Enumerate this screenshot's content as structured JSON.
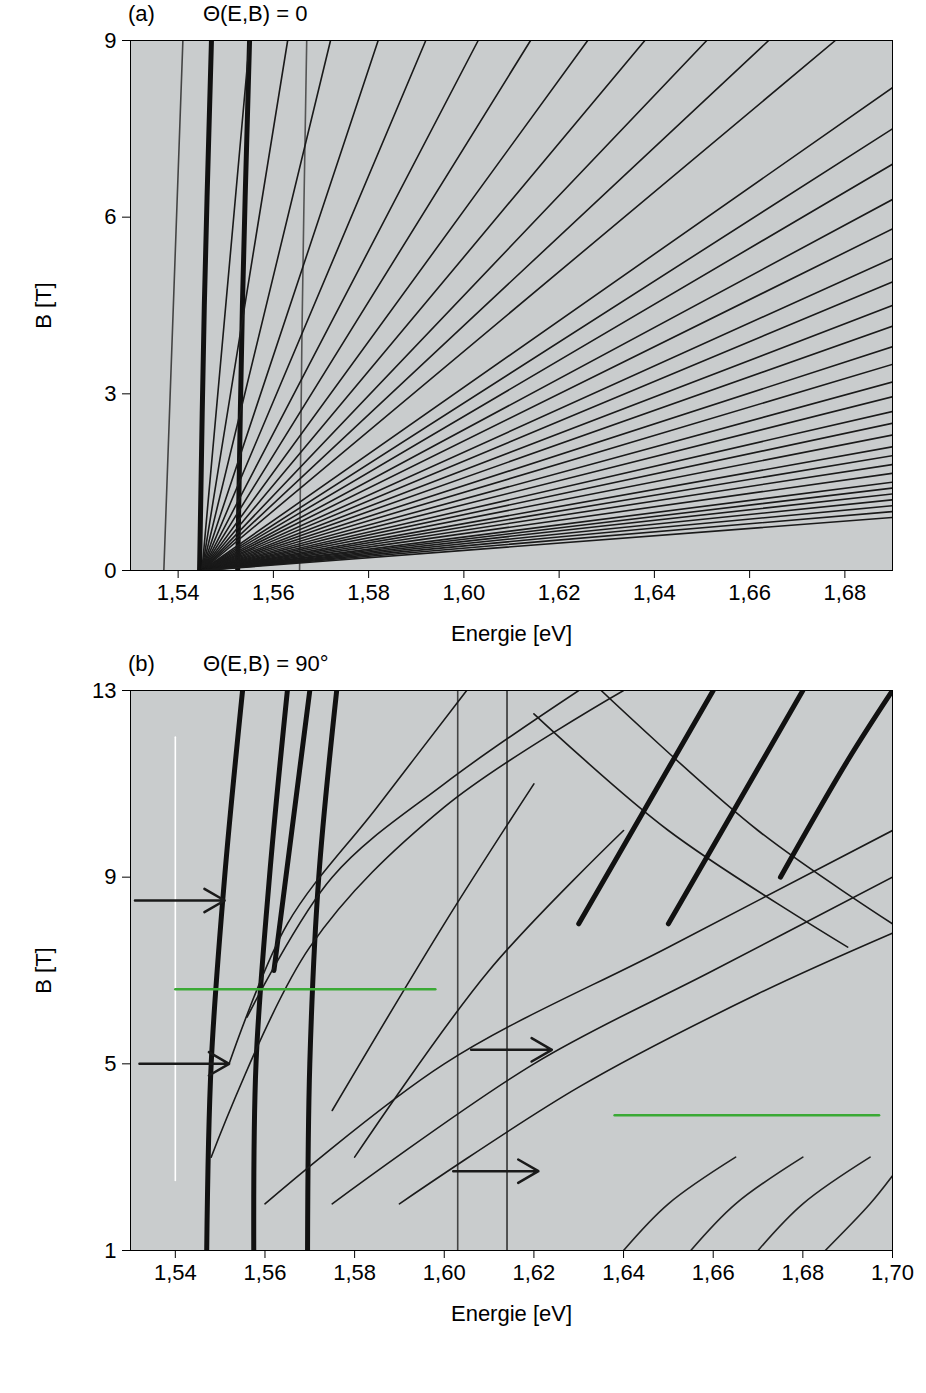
{
  "chart_data": [
    {
      "type": "line",
      "panel": "(a)",
      "title": "Θ(E,B) = 0",
      "xlabel": "Energie [eV]",
      "ylabel": "B [T]",
      "xlim": [
        1.53,
        1.69
      ],
      "ylim": [
        0,
        9
      ],
      "xticks": [
        {
          "value": 1.54,
          "label": "1,54"
        },
        {
          "value": 1.56,
          "label": "1,56"
        },
        {
          "value": 1.58,
          "label": "1,58"
        },
        {
          "value": 1.6,
          "label": "1,60"
        },
        {
          "value": 1.62,
          "label": "1,62"
        },
        {
          "value": 1.64,
          "label": "1,64"
        },
        {
          "value": 1.66,
          "label": "1,66"
        },
        {
          "value": 1.68,
          "label": "1,68"
        }
      ],
      "yticks": [
        0,
        3,
        6,
        9
      ],
      "grid": false,
      "series": [
        {
          "color": "#111111",
          "line_style": "bold",
          "x": [
            1.5445,
            1.5455,
            1.547
          ],
          "values": [
            0,
            4.5,
            9
          ]
        },
        {
          "color": "#111111",
          "line_style": "bold",
          "x": [
            1.5525,
            1.5535,
            1.555
          ],
          "values": [
            0,
            4.5,
            9
          ]
        },
        {
          "color": "#555555",
          "line_style": "solid",
          "x": [
            1.5655,
            1.566,
            1.567
          ],
          "values": [
            0,
            4,
            9
          ]
        },
        {
          "color": "#444444",
          "line_style": "solid",
          "x": [
            1.537,
            1.541
          ],
          "values": [
            0,
            9
          ]
        },
        {
          "color": "#1a1a1a",
          "line_style": "solid",
          "x": [
            1.545,
            1.555
          ],
          "values": [
            0,
            9
          ]
        },
        {
          "color": "#1a1a1a",
          "line_style": "solid",
          "x": [
            1.545,
            1.563
          ],
          "values": [
            0,
            9
          ]
        },
        {
          "color": "#1a1a1a",
          "line_style": "solid",
          "x": [
            1.545,
            1.572
          ],
          "values": [
            0,
            9
          ]
        },
        {
          "color": "#1a1a1a",
          "line_style": "solid",
          "x": [
            1.545,
            1.582
          ],
          "values": [
            0,
            9
          ]
        },
        {
          "color": "#1a1a1a",
          "line_style": "solid",
          "x": [
            1.545,
            1.592
          ],
          "values": [
            0,
            9
          ]
        },
        {
          "color": "#1a1a1a",
          "line_style": "solid",
          "x": [
            1.545,
            1.603
          ],
          "values": [
            0,
            9
          ]
        },
        {
          "color": "#1a1a1a",
          "line_style": "solid",
          "x": [
            1.545,
            1.614
          ],
          "values": [
            0,
            9
          ]
        },
        {
          "color": "#1a1a1a",
          "line_style": "solid",
          "x": [
            1.545,
            1.626
          ],
          "values": [
            0,
            9
          ]
        },
        {
          "color": "#1a1a1a",
          "line_style": "solid",
          "x": [
            1.545,
            1.638
          ],
          "values": [
            0,
            9
          ]
        },
        {
          "color": "#1a1a1a",
          "line_style": "solid",
          "x": [
            1.545,
            1.651
          ],
          "values": [
            0,
            9
          ]
        },
        {
          "color": "#1a1a1a",
          "line_style": "solid",
          "x": [
            1.545,
            1.664
          ],
          "values": [
            0,
            9
          ]
        },
        {
          "color": "#1a1a1a",
          "line_style": "solid",
          "x": [
            1.545,
            1.678
          ],
          "values": [
            0,
            9
          ]
        },
        {
          "color": "#1a1a1a",
          "line_style": "solid",
          "x": [
            1.545,
            1.69
          ],
          "values": [
            0,
            8.2
          ]
        },
        {
          "color": "#1a1a1a",
          "line_style": "solid",
          "x": [
            1.545,
            1.69
          ],
          "values": [
            0,
            7.5
          ]
        },
        {
          "color": "#1a1a1a",
          "line_style": "solid",
          "x": [
            1.545,
            1.69
          ],
          "values": [
            0,
            6.9
          ]
        },
        {
          "color": "#1a1a1a",
          "line_style": "solid",
          "x": [
            1.545,
            1.69
          ],
          "values": [
            0,
            6.3
          ]
        },
        {
          "color": "#1a1a1a",
          "line_style": "solid",
          "x": [
            1.545,
            1.69
          ],
          "values": [
            0,
            5.8
          ]
        },
        {
          "color": "#1a1a1a",
          "line_style": "solid",
          "x": [
            1.545,
            1.69
          ],
          "values": [
            0,
            5.3
          ]
        },
        {
          "color": "#1a1a1a",
          "line_style": "solid",
          "x": [
            1.545,
            1.69
          ],
          "values": [
            0,
            4.9
          ]
        },
        {
          "color": "#1a1a1a",
          "line_style": "solid",
          "x": [
            1.545,
            1.69
          ],
          "values": [
            0,
            4.5
          ]
        },
        {
          "color": "#1a1a1a",
          "line_style": "solid",
          "x": [
            1.545,
            1.69
          ],
          "values": [
            0,
            4.15
          ]
        },
        {
          "color": "#1a1a1a",
          "line_style": "solid",
          "x": [
            1.545,
            1.69
          ],
          "values": [
            0,
            3.8
          ]
        },
        {
          "color": "#1a1a1a",
          "line_style": "solid",
          "x": [
            1.545,
            1.69
          ],
          "values": [
            0,
            3.5
          ]
        },
        {
          "color": "#1a1a1a",
          "line_style": "solid",
          "x": [
            1.545,
            1.69
          ],
          "values": [
            0,
            3.2
          ]
        },
        {
          "color": "#1a1a1a",
          "line_style": "solid",
          "x": [
            1.545,
            1.69
          ],
          "values": [
            0,
            2.95
          ]
        },
        {
          "color": "#1a1a1a",
          "line_style": "solid",
          "x": [
            1.545,
            1.69
          ],
          "values": [
            0,
            2.7
          ]
        },
        {
          "color": "#1a1a1a",
          "line_style": "solid",
          "x": [
            1.545,
            1.69
          ],
          "values": [
            0,
            2.5
          ]
        },
        {
          "color": "#1a1a1a",
          "line_style": "solid",
          "x": [
            1.545,
            1.69
          ],
          "values": [
            0,
            2.3
          ]
        },
        {
          "color": "#1a1a1a",
          "line_style": "solid",
          "x": [
            1.545,
            1.69
          ],
          "values": [
            0,
            2.1
          ]
        },
        {
          "color": "#1a1a1a",
          "line_style": "solid",
          "x": [
            1.545,
            1.69
          ],
          "values": [
            0,
            1.95
          ]
        },
        {
          "color": "#1a1a1a",
          "line_style": "solid",
          "x": [
            1.545,
            1.69
          ],
          "values": [
            0,
            1.8
          ]
        },
        {
          "color": "#1a1a1a",
          "line_style": "solid",
          "x": [
            1.545,
            1.69
          ],
          "values": [
            0,
            1.65
          ]
        },
        {
          "color": "#1a1a1a",
          "line_style": "solid",
          "x": [
            1.545,
            1.69
          ],
          "values": [
            0,
            1.5
          ]
        },
        {
          "color": "#1a1a1a",
          "line_style": "solid",
          "x": [
            1.545,
            1.69
          ],
          "values": [
            0,
            1.4
          ]
        },
        {
          "color": "#1a1a1a",
          "line_style": "solid",
          "x": [
            1.545,
            1.69
          ],
          "values": [
            0,
            1.3
          ]
        },
        {
          "color": "#1a1a1a",
          "line_style": "solid",
          "x": [
            1.545,
            1.69
          ],
          "values": [
            0,
            1.2
          ]
        },
        {
          "color": "#1a1a1a",
          "line_style": "solid",
          "x": [
            1.545,
            1.69
          ],
          "values": [
            0,
            1.1
          ]
        },
        {
          "color": "#1a1a1a",
          "line_style": "solid",
          "x": [
            1.545,
            1.69
          ],
          "values": [
            0,
            1.0
          ]
        },
        {
          "color": "#1a1a1a",
          "line_style": "solid",
          "x": [
            1.545,
            1.69
          ],
          "values": [
            0,
            0.9
          ]
        }
      ]
    },
    {
      "type": "line",
      "panel": "(b)",
      "title": "Θ(E,B) = 90°",
      "xlabel": "Energie [eV]",
      "ylabel": "B [T]",
      "xlim": [
        1.53,
        1.7
      ],
      "ylim": [
        1,
        13
      ],
      "xticks": [
        {
          "value": 1.54,
          "label": "1,54"
        },
        {
          "value": 1.56,
          "label": "1,56"
        },
        {
          "value": 1.58,
          "label": "1,58"
        },
        {
          "value": 1.6,
          "label": "1,60"
        },
        {
          "value": 1.62,
          "label": "1,62"
        },
        {
          "value": 1.64,
          "label": "1,64"
        },
        {
          "value": 1.66,
          "label": "1,66"
        },
        {
          "value": 1.68,
          "label": "1,68"
        },
        {
          "value": 1.7,
          "label": "1,70"
        }
      ],
      "yticks": [
        1,
        5,
        9,
        13
      ],
      "grid": false,
      "series": [
        {
          "color": "#ffffff",
          "line_style": "solid",
          "x": [
            1.54,
            1.54
          ],
          "values": [
            2.5,
            12
          ]
        },
        {
          "color": "#444444",
          "line_style": "solid",
          "x": [
            1.603,
            1.603
          ],
          "values": [
            1,
            13
          ]
        },
        {
          "color": "#333333",
          "line_style": "solid",
          "x": [
            1.614,
            1.614
          ],
          "values": [
            1,
            13
          ]
        },
        {
          "color": "#111111",
          "line_style": "bold",
          "x": [
            1.547,
            1.548,
            1.551,
            1.555
          ],
          "values": [
            1,
            5,
            9,
            13
          ]
        },
        {
          "color": "#111111",
          "line_style": "bold",
          "x": [
            1.5575,
            1.558,
            1.561,
            1.565
          ],
          "values": [
            1,
            5,
            9,
            13
          ]
        },
        {
          "color": "#111111",
          "line_style": "bold",
          "x": [
            1.5695,
            1.57,
            1.572,
            1.576
          ],
          "values": [
            1,
            5,
            9,
            13
          ]
        },
        {
          "color": "#111111",
          "line_style": "bold",
          "x": [
            1.562,
            1.566,
            1.57
          ],
          "values": [
            7,
            10,
            13
          ]
        },
        {
          "color": "#1a1a1a",
          "line_style": "solid",
          "x": [
            1.552,
            1.565,
            1.585,
            1.605
          ],
          "values": [
            5,
            8,
            10.5,
            13
          ]
        },
        {
          "color": "#1a1a1a",
          "line_style": "solid",
          "x": [
            1.556,
            1.575,
            1.6,
            1.63
          ],
          "values": [
            6,
            9,
            11,
            13
          ]
        },
        {
          "color": "#1a1a1a",
          "line_style": "solid",
          "x": [
            1.548,
            1.57,
            1.6,
            1.64
          ],
          "values": [
            3,
            7.5,
            10.5,
            13
          ]
        },
        {
          "color": "#1a1a1a",
          "line_style": "solid",
          "x": [
            1.56,
            1.6,
            1.65,
            1.7
          ],
          "values": [
            2,
            5,
            7.5,
            10
          ]
        },
        {
          "color": "#1a1a1a",
          "line_style": "solid",
          "x": [
            1.575,
            1.62,
            1.66,
            1.7
          ],
          "values": [
            2,
            5,
            7,
            9
          ]
        },
        {
          "color": "#1a1a1a",
          "line_style": "solid",
          "x": [
            1.59,
            1.63,
            1.67,
            1.7
          ],
          "values": [
            2,
            4.5,
            6.5,
            7.8
          ]
        },
        {
          "color": "#1a1a1a",
          "line_style": "solid",
          "x": [
            1.575,
            1.6,
            1.62
          ],
          "values": [
            4,
            8,
            11
          ]
        },
        {
          "color": "#1a1a1a",
          "line_style": "solid",
          "x": [
            1.58,
            1.61,
            1.64
          ],
          "values": [
            3,
            7,
            10
          ]
        },
        {
          "color": "#1a1a1a",
          "line_style": "solid",
          "x": [
            1.62,
            1.65,
            1.69
          ],
          "values": [
            12.5,
            10,
            7.5
          ]
        },
        {
          "color": "#1a1a1a",
          "line_style": "solid",
          "x": [
            1.635,
            1.67,
            1.7
          ],
          "values": [
            13,
            10,
            8
          ]
        },
        {
          "color": "#111111",
          "line_style": "bold",
          "x": [
            1.63,
            1.645,
            1.66
          ],
          "values": [
            8,
            10.5,
            13
          ]
        },
        {
          "color": "#111111",
          "line_style": "bold",
          "x": [
            1.65,
            1.665,
            1.68
          ],
          "values": [
            8,
            10.5,
            13
          ]
        },
        {
          "color": "#111111",
          "line_style": "bold",
          "x": [
            1.675,
            1.69,
            1.7
          ],
          "values": [
            9,
            11.5,
            13
          ]
        },
        {
          "color": "#222222",
          "line_style": "solid",
          "x": [
            1.64,
            1.65,
            1.665
          ],
          "values": [
            1,
            2,
            3
          ]
        },
        {
          "color": "#222222",
          "line_style": "solid",
          "x": [
            1.655,
            1.665,
            1.68
          ],
          "values": [
            1,
            2,
            3
          ]
        },
        {
          "color": "#222222",
          "line_style": "solid",
          "x": [
            1.67,
            1.68,
            1.695
          ],
          "values": [
            1,
            2,
            3
          ]
        },
        {
          "color": "#222222",
          "line_style": "solid",
          "x": [
            1.685,
            1.695,
            1.7
          ],
          "values": [
            1,
            2,
            2.6
          ]
        },
        {
          "color": "#3aa935",
          "line_style": "solid",
          "x": [
            1.54,
            1.598
          ],
          "values": [
            6.6,
            6.6
          ]
        },
        {
          "color": "#3aa935",
          "line_style": "solid",
          "x": [
            1.638,
            1.697
          ],
          "values": [
            3.9,
            3.9
          ]
        },
        {
          "type": "arrow",
          "color": "#1a1a1a",
          "x": [
            1.531,
            1.551
          ],
          "values": [
            8.5,
            8.5
          ]
        },
        {
          "type": "arrow",
          "color": "#1a1a1a",
          "x": [
            1.532,
            1.552
          ],
          "values": [
            5,
            5
          ]
        },
        {
          "type": "arrow",
          "color": "#1a1a1a",
          "x": [
            1.606,
            1.624
          ],
          "values": [
            5.3,
            5.3
          ]
        },
        {
          "type": "arrow",
          "color": "#1a1a1a",
          "x": [
            1.602,
            1.621
          ],
          "values": [
            2.7,
            2.7
          ]
        }
      ]
    }
  ]
}
